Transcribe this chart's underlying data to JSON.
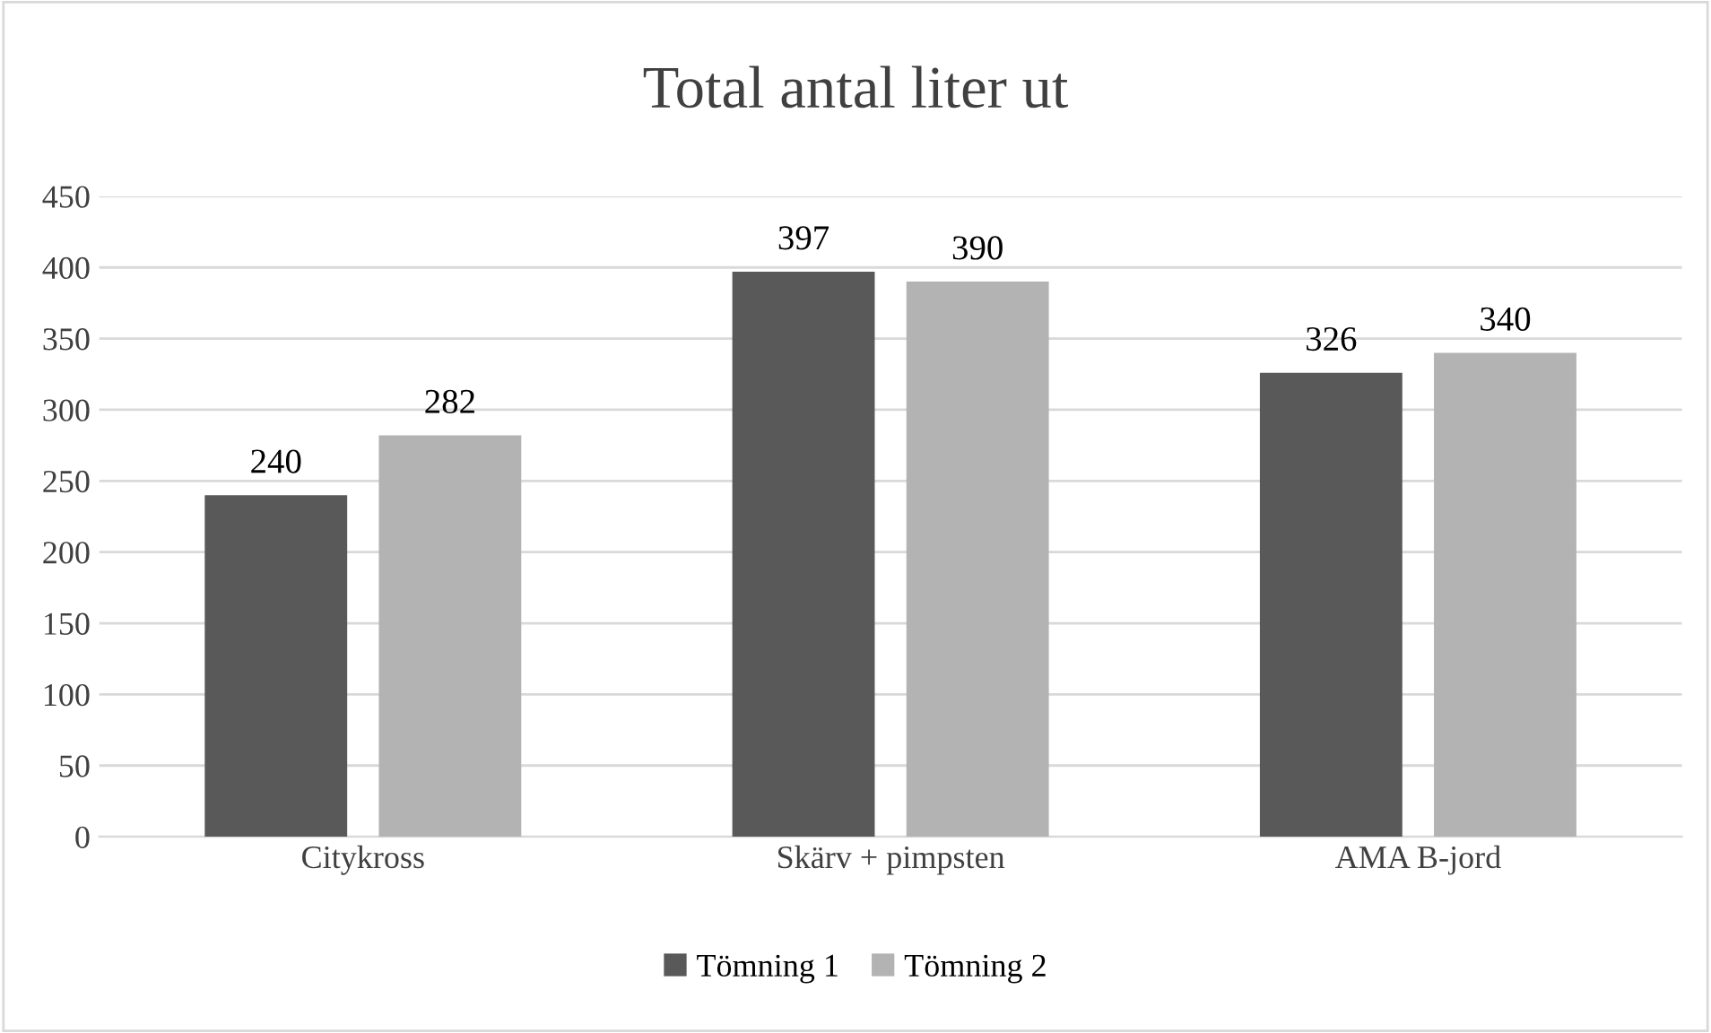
{
  "chart_data": {
    "type": "bar",
    "title": "Total antal liter ut",
    "categories": [
      "Citykross",
      "Skärv + pimpsten",
      "AMA B-jord"
    ],
    "series": [
      {
        "name": "Tömning 1",
        "color": "#595959",
        "values": [
          240,
          397,
          326
        ]
      },
      {
        "name": "Tömning 2",
        "color": "#b3b3b3",
        "values": [
          282,
          390,
          340
        ]
      }
    ],
    "ylim": [
      0,
      450
    ],
    "yticks": [
      0,
      50,
      100,
      150,
      200,
      250,
      300,
      350,
      400,
      450
    ],
    "grid": "y",
    "legend": "bottom",
    "data_labels": true
  }
}
